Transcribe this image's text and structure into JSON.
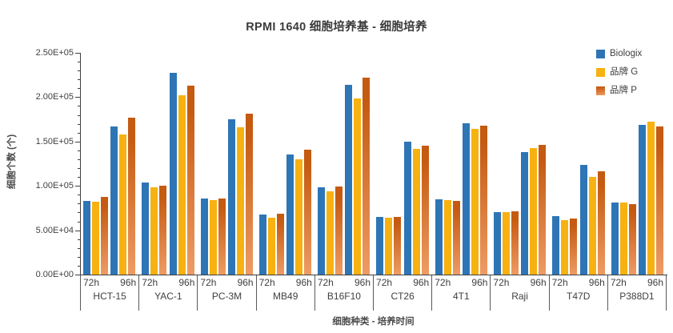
{
  "chart_data": {
    "type": "bar",
    "title": "RPMI 1640 细胞培养基 - 细胞培养",
    "xlabel": "细胞种类 - 培养时间",
    "ylabel": "细胞个数 (个)",
    "ylim": [
      0,
      250000
    ],
    "y_major_step": 50000,
    "y_minor_step": 10000,
    "y_tick_labels": [
      "0.00E+00",
      "5.00E+04",
      "1.00E+05",
      "1.50E+05",
      "2.00E+05",
      "2.50E+05"
    ],
    "grid": false,
    "legend_position": "top-right",
    "categories": [
      "HCT-15",
      "YAC-1",
      "PC-3M",
      "MB49",
      "B16F10",
      "CT26",
      "4T1",
      "Raji",
      "T47D",
      "P388D1"
    ],
    "subcategories": [
      "72h",
      "96h"
    ],
    "series": [
      {
        "name": "Biologix",
        "color": "#2E75B6",
        "values_72h": [
          83000,
          104000,
          86000,
          68000,
          98000,
          65000,
          85000,
          70000,
          66000,
          81000
        ],
        "values_96h": [
          167000,
          227000,
          175000,
          135000,
          214000,
          150000,
          171000,
          138000,
          124000,
          169000
        ]
      },
      {
        "name": "品牌 G",
        "color": "#F7B111",
        "values_72h": [
          82000,
          98000,
          84000,
          64000,
          94000,
          64000,
          84000,
          70000,
          61000,
          81000
        ],
        "values_96h": [
          158000,
          202000,
          166000,
          130000,
          199000,
          142000,
          164000,
          143000,
          110000,
          172000
        ]
      },
      {
        "name": "品牌 P",
        "color": "#C55A11",
        "color_gradient_bottom": "#EE9C64",
        "values_72h": [
          88000,
          100000,
          86000,
          69000,
          99000,
          65000,
          83000,
          71000,
          63000,
          79000
        ],
        "values_96h": [
          177000,
          213000,
          181000,
          141000,
          222000,
          145000,
          168000,
          146000,
          116000,
          167000
        ]
      }
    ]
  }
}
